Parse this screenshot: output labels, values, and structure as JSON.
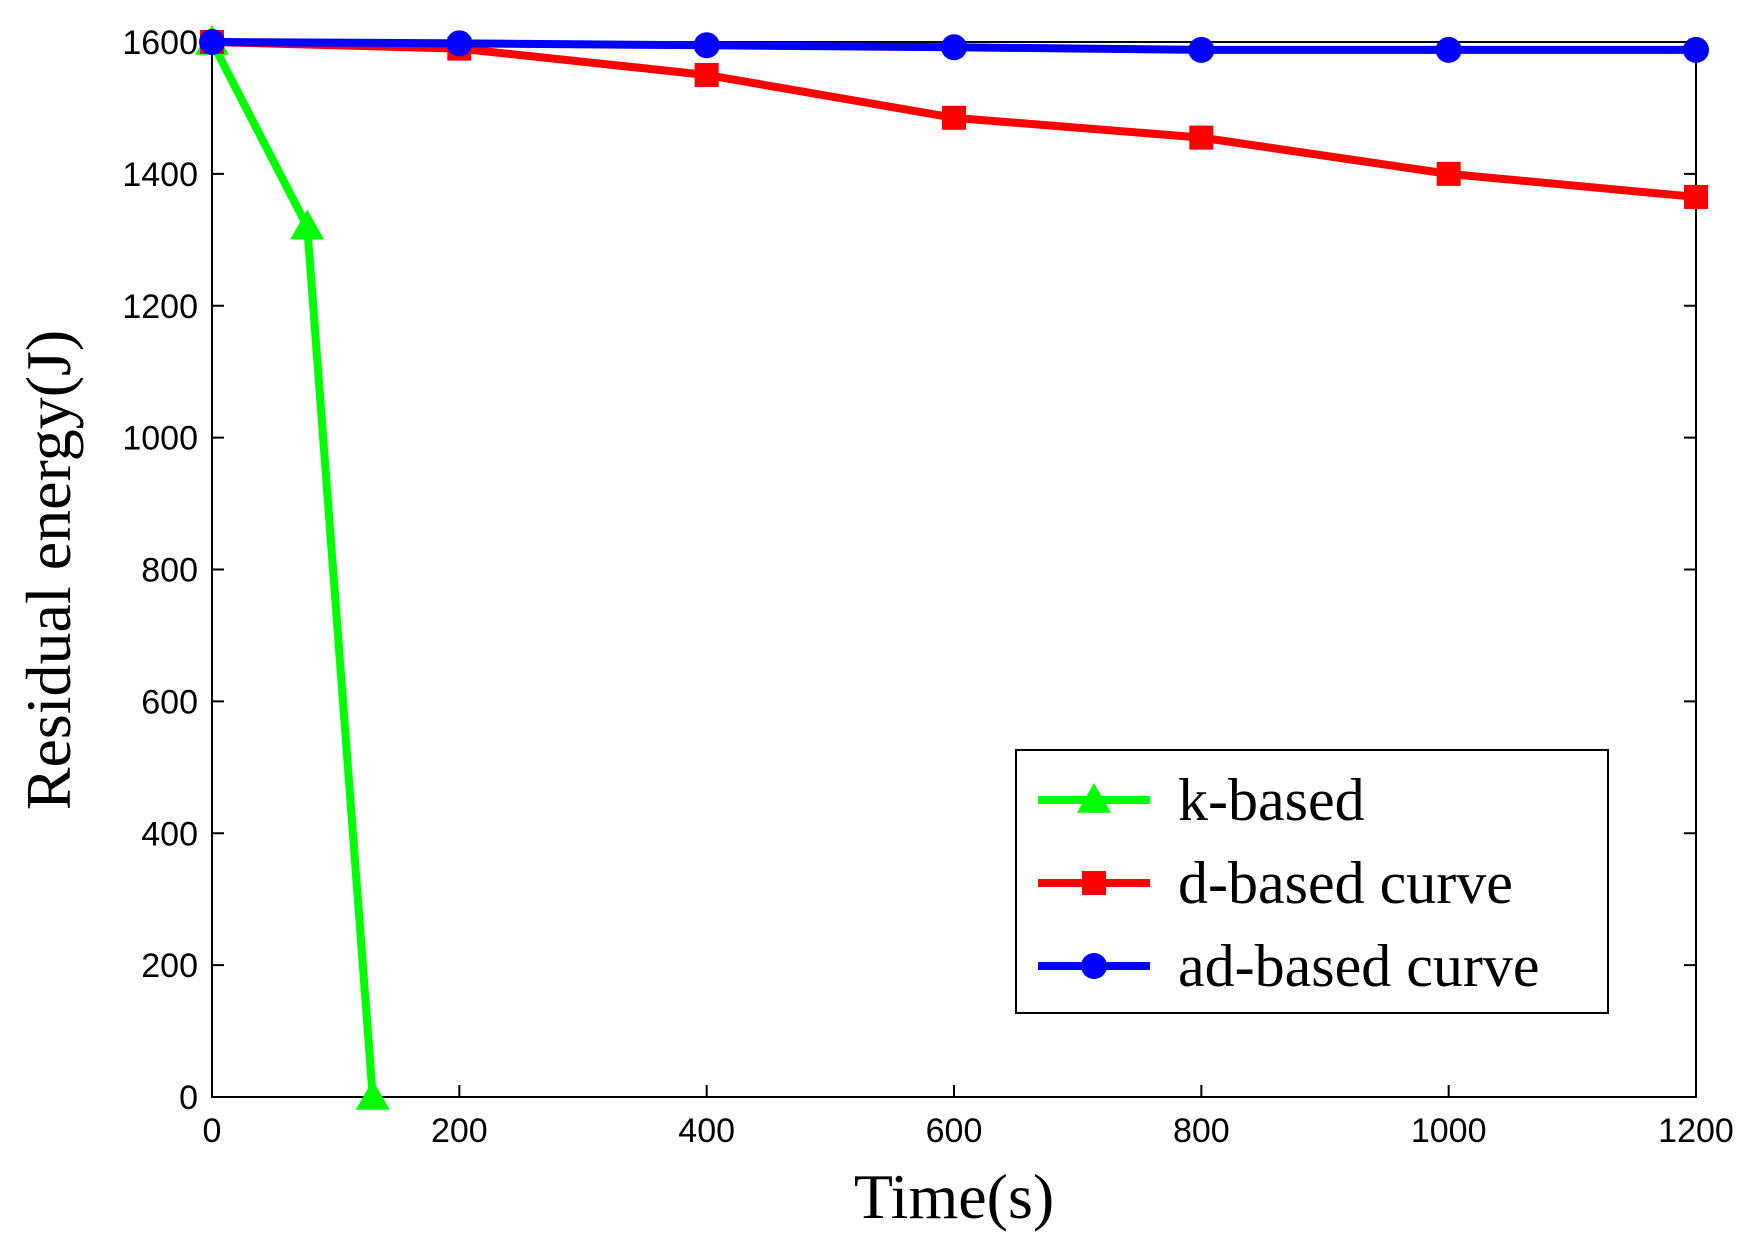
{
  "chart_data": {
    "type": "line",
    "title": "",
    "xlabel": "Time(s)",
    "ylabel": "Residual energy(J)",
    "xlim": [
      0,
      1200
    ],
    "ylim": [
      0,
      1600
    ],
    "xticks": [
      "0",
      "200",
      "400",
      "600",
      "800",
      "1000",
      "1200"
    ],
    "yticks": [
      "0",
      "200",
      "400",
      "600",
      "800",
      "1000",
      "1200",
      "1400",
      "1600"
    ],
    "grid": false,
    "legend_position": "bottom-right",
    "series": [
      {
        "name": "k-based",
        "color": "#00ff00",
        "marker": "triangle",
        "x": [
          0,
          77,
          130
        ],
        "y": [
          1600,
          1320,
          0
        ]
      },
      {
        "name": "d-based curve",
        "color": "#ff0000",
        "marker": "square",
        "x": [
          0,
          200,
          400,
          600,
          800,
          1000,
          1200
        ],
        "y": [
          1600,
          1590,
          1550,
          1485,
          1455,
          1400,
          1365
        ]
      },
      {
        "name": "ad-based curve",
        "color": "#0000ff",
        "marker": "circle",
        "x": [
          0,
          200,
          400,
          600,
          800,
          1000,
          1200
        ],
        "y": [
          1600,
          1598,
          1595,
          1592,
          1588,
          1588,
          1588
        ]
      }
    ]
  }
}
